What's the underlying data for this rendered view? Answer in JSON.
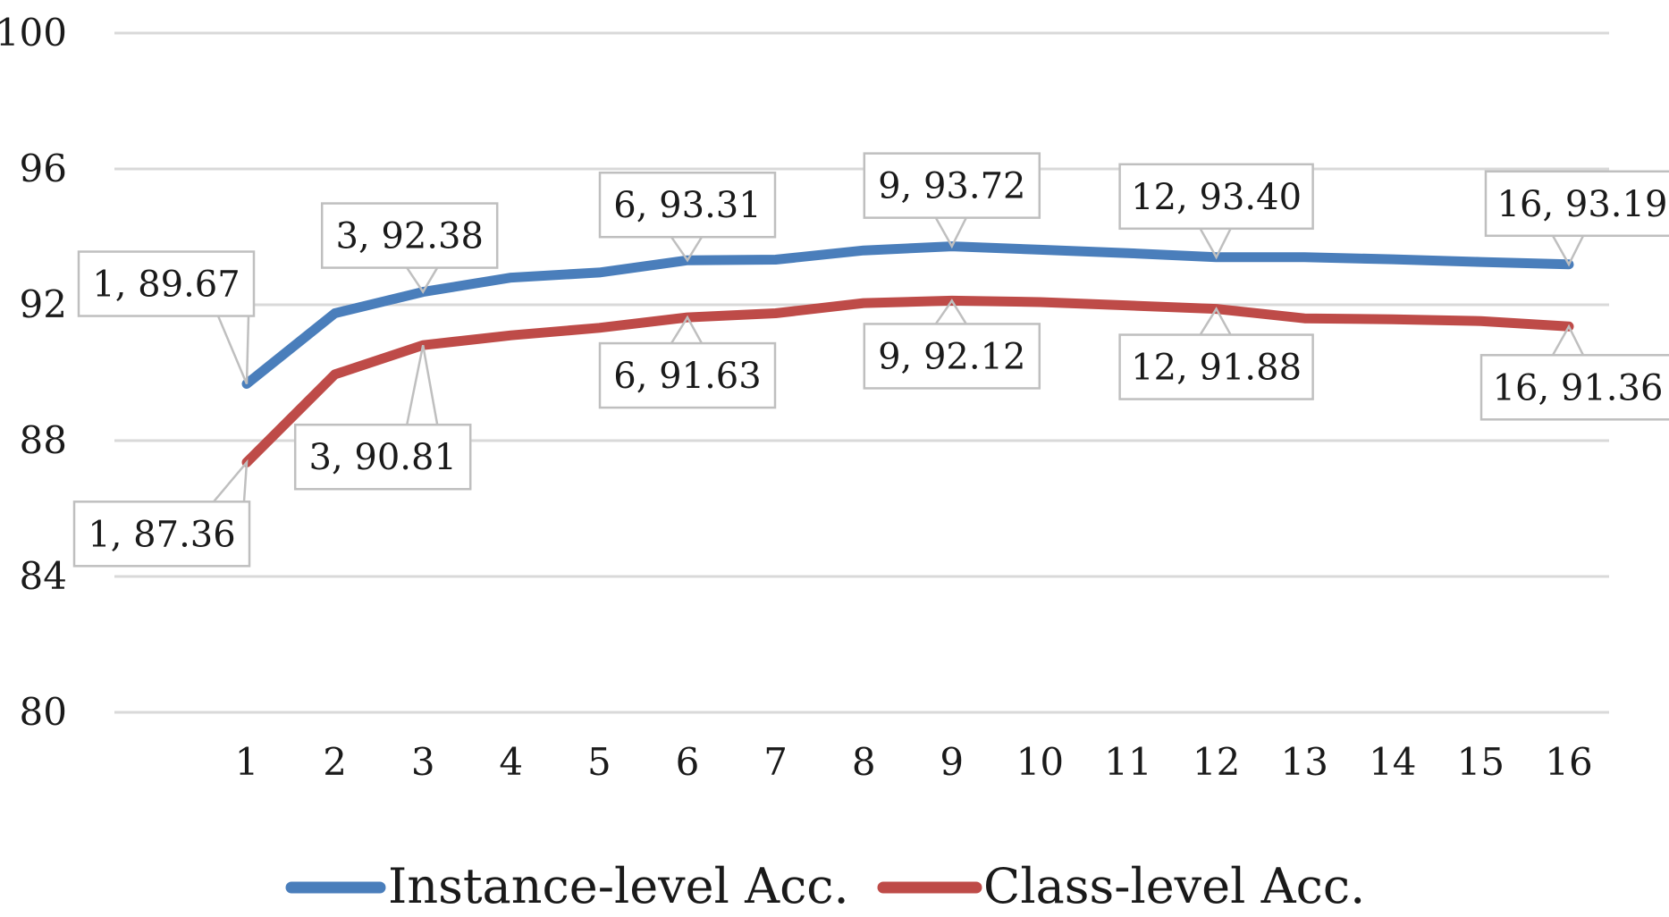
{
  "chart_data": {
    "type": "line",
    "title": "",
    "xlabel": "",
    "ylabel": "",
    "categories": [
      "1",
      "2",
      "3",
      "4",
      "5",
      "6",
      "7",
      "8",
      "9",
      "10",
      "11",
      "12",
      "13",
      "14",
      "15",
      "16"
    ],
    "ylim": [
      80,
      100
    ],
    "yticks": [
      "80",
      "84",
      "88",
      "92",
      "96",
      "100"
    ],
    "grid": true,
    "legend_position": "bottom",
    "series": [
      {
        "name": "Instance-level Acc.",
        "color": "#4a7ebb",
        "values": [
          89.67,
          91.75,
          92.38,
          92.8,
          92.95,
          93.31,
          93.33,
          93.6,
          93.72,
          93.62,
          93.52,
          93.4,
          93.4,
          93.34,
          93.26,
          93.19
        ],
        "labels": [
          {
            "index": 0,
            "text": "1, 89.67"
          },
          {
            "index": 2,
            "text": "3, 92.38"
          },
          {
            "index": 5,
            "text": "6, 93.31"
          },
          {
            "index": 8,
            "text": "9, 93.72"
          },
          {
            "index": 11,
            "text": "12, 93.40"
          },
          {
            "index": 15,
            "text": "16, 93.19"
          }
        ]
      },
      {
        "name": "Class-level Acc.",
        "color": "#be4b48",
        "values": [
          87.36,
          89.95,
          90.81,
          91.1,
          91.32,
          91.63,
          91.75,
          92.05,
          92.12,
          92.08,
          91.98,
          91.88,
          91.6,
          91.57,
          91.52,
          91.36
        ],
        "labels": [
          {
            "index": 0,
            "text": "1, 87.36"
          },
          {
            "index": 2,
            "text": "3, 90.81"
          },
          {
            "index": 5,
            "text": "6, 91.63"
          },
          {
            "index": 8,
            "text": "9, 92.12"
          },
          {
            "index": 11,
            "text": "12, 91.88"
          },
          {
            "index": 15,
            "text": "16, 91.36"
          }
        ]
      }
    ]
  }
}
